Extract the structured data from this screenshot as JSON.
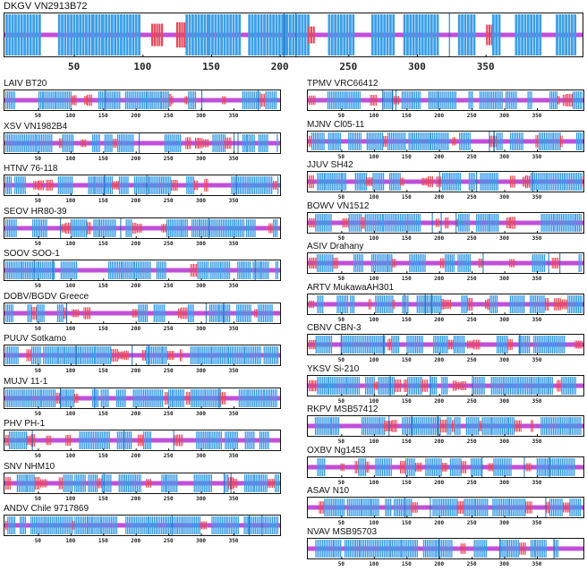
{
  "colors": {
    "helix": "#3d9ee6",
    "helix_edge": "#1b6fbf",
    "strand": "#e8475a",
    "coil": "#c14fd9",
    "frame": "#111111"
  },
  "legend": {},
  "top_panel": {
    "name": "DKGV VN2913B72",
    "tick_labels": [
      "50",
      "100",
      "150",
      "200",
      "250",
      "300",
      "350"
    ]
  },
  "left_panels": [
    {
      "name": "LAIV BT20",
      "tick_labels": [
        "50",
        "100",
        "150",
        "200",
        "250",
        "300",
        "350"
      ]
    },
    {
      "name": "XSV VN1982B4",
      "tick_labels": [
        "50",
        "100",
        "150",
        "200",
        "250",
        "300",
        "350"
      ]
    },
    {
      "name": "HTNV 76-118",
      "tick_labels": [
        "50",
        "100",
        "150",
        "200",
        "250",
        "300",
        "350"
      ]
    },
    {
      "name": "SEOV HR80-39",
      "tick_labels": [
        "50",
        "100",
        "150",
        "200",
        "250",
        "300",
        "350"
      ]
    },
    {
      "name": "SOOV SOO-1",
      "tick_labels": [
        "50",
        "100",
        "150",
        "200",
        "250",
        "300",
        "350"
      ]
    },
    {
      "name": "DOBV/BGDV Greece",
      "tick_labels": [
        "50",
        "100",
        "150",
        "200",
        "250",
        "300",
        "350"
      ]
    },
    {
      "name": "PUUV Sotkamo",
      "tick_labels": [
        "50",
        "100",
        "150",
        "200",
        "250",
        "300",
        "350"
      ]
    },
    {
      "name": "MUJV 11-1",
      "tick_labels": [
        "50",
        "100",
        "150",
        "200",
        "250",
        "300",
        "350"
      ]
    },
    {
      "name": "PHV PH-1",
      "tick_labels": [
        "50",
        "100",
        "150",
        "200",
        "250",
        "300",
        "350"
      ]
    },
    {
      "name": "SNV NHM10",
      "tick_labels": [
        "50",
        "100",
        "150",
        "200",
        "250",
        "300",
        "350"
      ]
    },
    {
      "name": "ANDV Chile 9717869",
      "tick_labels": [
        "50",
        "100",
        "150",
        "200",
        "250",
        "300",
        "350"
      ]
    }
  ],
  "right_panels": [
    {
      "name": "TPMV VRC66412",
      "tick_labels": [
        "50",
        "100",
        "150",
        "200",
        "250",
        "300",
        "350"
      ]
    },
    {
      "name": "MJNV Cl05-11",
      "tick_labels": [
        "50",
        "100",
        "150",
        "200",
        "250",
        "300",
        "350"
      ]
    },
    {
      "name": "JJUV SH42",
      "tick_labels": [
        "50",
        "100",
        "150",
        "200",
        "250",
        "300",
        "350"
      ]
    },
    {
      "name": "BOWV VN1512",
      "tick_labels": [
        "50",
        "100",
        "150",
        "200",
        "250",
        "300",
        "350"
      ]
    },
    {
      "name": "ASIV Drahany",
      "tick_labels": [
        "50",
        "100",
        "150",
        "200",
        "250",
        "300",
        "350"
      ]
    },
    {
      "name": "ARTV MukawaAH301",
      "tick_labels": [
        "50",
        "100",
        "150",
        "200",
        "250",
        "300",
        "350"
      ]
    },
    {
      "name": "CBNV CBN-3",
      "tick_labels": [
        "50",
        "100",
        "150",
        "200",
        "250",
        "300",
        "350"
      ]
    },
    {
      "name": "YKSV Si-210",
      "tick_labels": [
        "50",
        "100",
        "150",
        "200",
        "250",
        "300",
        "350"
      ]
    },
    {
      "name": "RKPV MSB57412",
      "tick_labels": [
        "50",
        "100",
        "150",
        "200",
        "250",
        "300",
        "350"
      ]
    },
    {
      "name": "OXBV Ng1453",
      "tick_labels": [
        "50",
        "100",
        "150",
        "200",
        "250",
        "300",
        "350"
      ]
    },
    {
      "name": "ASAV N10",
      "tick_labels": [
        "50",
        "100",
        "150",
        "200",
        "250",
        "300",
        "350"
      ]
    },
    {
      "name": "NVAV MSB95703",
      "tick_labels": [
        "50",
        "100",
        "150",
        "200",
        "250",
        "300",
        "350"
      ]
    }
  ]
}
